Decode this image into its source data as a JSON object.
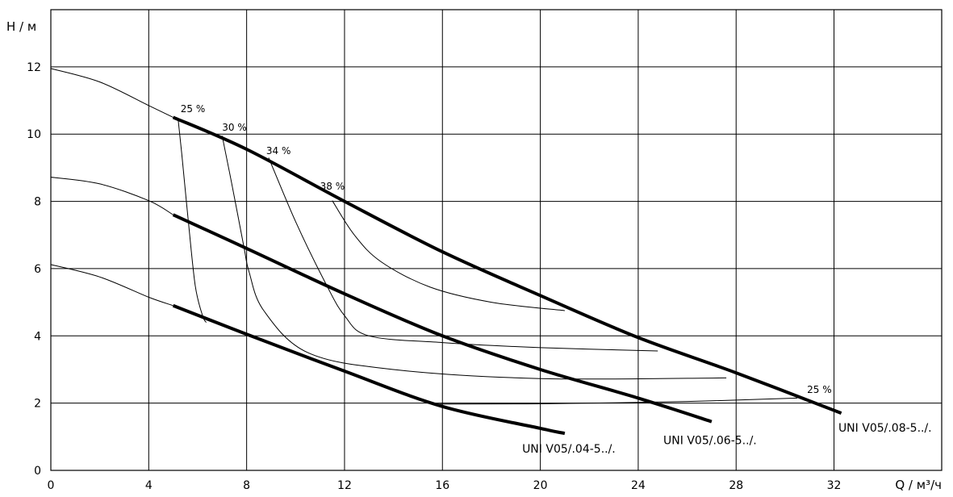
{
  "chart_data": {
    "type": "line",
    "xlabel": "Q / м³/ч",
    "ylabel": "H / м",
    "xlim": [
      0,
      36.4
    ],
    "ylim": [
      0,
      13.7
    ],
    "xticks": [
      0,
      4,
      8,
      12,
      16,
      20,
      24,
      28,
      32
    ],
    "yticks": [
      0,
      2,
      4,
      6,
      8,
      10,
      12
    ],
    "grid": true,
    "max_speed_curves": [
      {
        "points": [
          [
            0,
            11.95
          ],
          [
            2,
            11.55
          ],
          [
            4,
            10.85
          ],
          [
            5,
            10.5
          ]
        ]
      },
      {
        "points": [
          [
            0,
            8.72
          ],
          [
            2,
            8.52
          ],
          [
            4,
            8.02
          ],
          [
            5,
            7.6
          ]
        ]
      },
      {
        "points": [
          [
            0,
            6.12
          ],
          [
            2,
            5.75
          ],
          [
            4,
            5.15
          ],
          [
            5,
            4.9
          ]
        ]
      }
    ],
    "series": [
      {
        "name": "UNI V05/.08-5../.",
        "points": [
          [
            5,
            10.5
          ],
          [
            8,
            9.55
          ],
          [
            12,
            8.0
          ],
          [
            16,
            6.5
          ],
          [
            20,
            5.2
          ],
          [
            24,
            3.95
          ],
          [
            28,
            2.9
          ],
          [
            32.3,
            1.7
          ]
        ]
      },
      {
        "name": "UNI V05/.06-5../.",
        "points": [
          [
            5,
            7.6
          ],
          [
            8,
            6.6
          ],
          [
            12,
            5.25
          ],
          [
            16,
            4.0
          ],
          [
            20,
            3.0
          ],
          [
            24,
            2.15
          ],
          [
            27,
            1.45
          ]
        ]
      },
      {
        "name": "UNI V05/.04-5../.",
        "points": [
          [
            5,
            4.9
          ],
          [
            8,
            4.05
          ],
          [
            12,
            2.95
          ],
          [
            16,
            1.9
          ],
          [
            20,
            1.25
          ],
          [
            21,
            1.1
          ]
        ]
      }
    ],
    "percent_curves": [
      {
        "label": "25 %",
        "points": [
          [
            5.2,
            10.45
          ],
          [
            5.35,
            9.4
          ],
          [
            5.6,
            7.55
          ],
          [
            5.9,
            5.5
          ],
          [
            6.2,
            4.6
          ],
          [
            6.35,
            4.4
          ]
        ]
      },
      {
        "label": "30 %",
        "points": [
          [
            7.0,
            9.95
          ],
          [
            7.4,
            8.5
          ],
          [
            7.9,
            6.6
          ],
          [
            8.1,
            5.9
          ],
          [
            8.7,
            4.75
          ],
          [
            10.5,
            3.5
          ],
          [
            14.0,
            3.0
          ],
          [
            20.0,
            2.73
          ],
          [
            27.6,
            2.75
          ]
        ]
      },
      {
        "label": "34 %",
        "points": [
          [
            8.9,
            9.3
          ],
          [
            10.0,
            7.4
          ],
          [
            11.2,
            5.6
          ],
          [
            12.0,
            4.6
          ],
          [
            13.0,
            4.0
          ],
          [
            16.0,
            3.8
          ],
          [
            20.0,
            3.65
          ],
          [
            24.8,
            3.55
          ]
        ]
      },
      {
        "label": "38 %",
        "points": [
          [
            11.5,
            8.02
          ],
          [
            12.4,
            7.0
          ],
          [
            13.5,
            6.2
          ],
          [
            15.5,
            5.45
          ],
          [
            18.0,
            5.0
          ],
          [
            21.0,
            4.75
          ]
        ]
      },
      {
        "label": "25 %",
        "points": [
          [
            15.7,
            1.97
          ],
          [
            20.0,
            1.98
          ],
          [
            26.0,
            2.05
          ],
          [
            30.5,
            2.15
          ]
        ]
      }
    ],
    "percent_labels": [
      {
        "text": "25 %",
        "x": 5.3,
        "y": 10.65
      },
      {
        "text": "30 %",
        "x": 7.0,
        "y": 10.1
      },
      {
        "text": "34 %",
        "x": 8.8,
        "y": 9.4
      },
      {
        "text": "38 %",
        "x": 11.0,
        "y": 8.35
      },
      {
        "text": "25 %",
        "x": 30.9,
        "y": 2.3
      }
    ]
  }
}
